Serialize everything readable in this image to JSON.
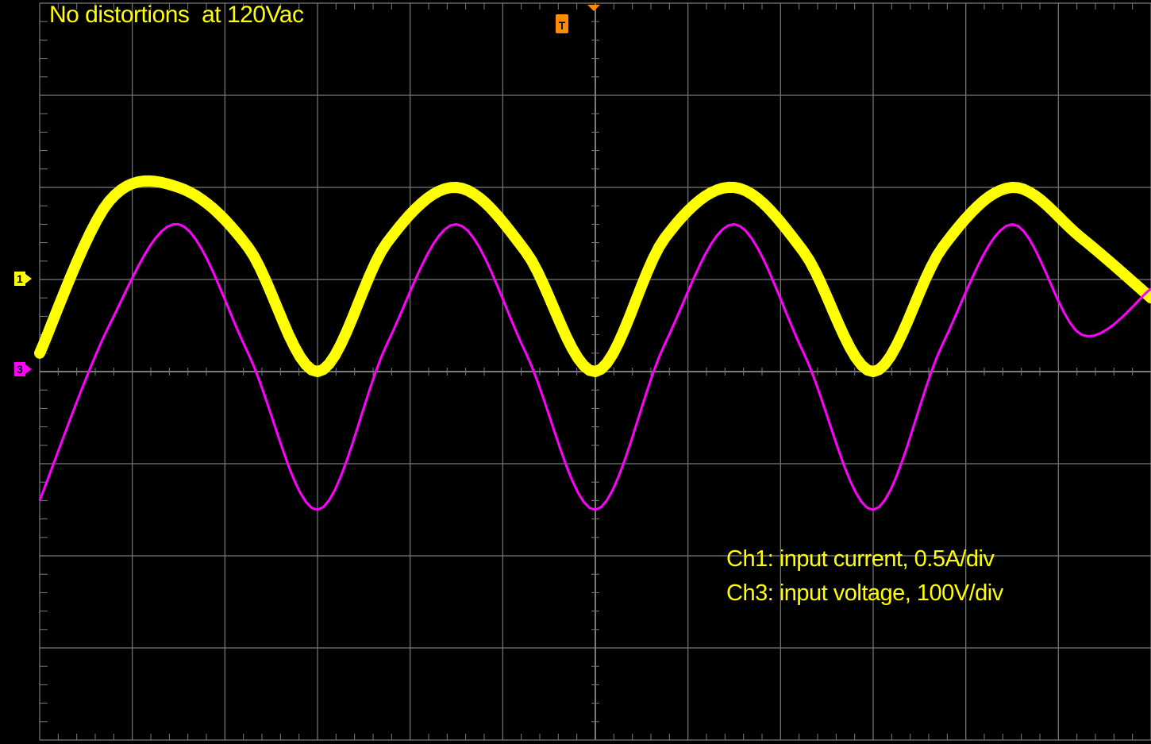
{
  "title": "No distortions  at 120Vac",
  "annotations": [
    "Ch1: input current, 0.5A/div",
    "Ch3: input voltage, 100V/div"
  ],
  "markers": {
    "ch1": "1",
    "ch3": "3",
    "trigger": "T"
  },
  "colors": {
    "ch1": "#ffff00",
    "ch3": "#ff00ff",
    "grid": "#7a7a7a",
    "background": "#000000",
    "trigger": "#ff8c00"
  },
  "chart_data": {
    "type": "line",
    "grid": {
      "divisions_x": 12,
      "divisions_y": 8,
      "visible": true
    },
    "time_divisions": [
      0,
      0.75,
      1.5,
      2.25,
      3,
      3.75,
      4.5,
      5.25,
      6,
      6.75,
      7.5,
      8.25,
      9,
      9.75,
      10.5,
      11.25,
      12
    ],
    "series": [
      {
        "name": "Ch1: input current",
        "units_per_div": "0.5A/div",
        "values_div": [
          -0.8,
          0.85,
          1.0,
          0.35,
          -1.0,
          0.4,
          1.0,
          0.3,
          -1.0,
          0.45,
          1.0,
          0.3,
          -1.0,
          0.35,
          1.0,
          0.45,
          -0.2
        ]
      },
      {
        "name": "Ch3: input voltage",
        "units_per_div": "100V/div",
        "values_div": [
          -1.4,
          0.5,
          1.6,
          0.2,
          -1.5,
          0.3,
          1.6,
          0.2,
          -1.5,
          0.3,
          1.6,
          0.2,
          -1.5,
          0.3,
          1.6,
          0.4,
          0.9
        ]
      }
    ]
  }
}
